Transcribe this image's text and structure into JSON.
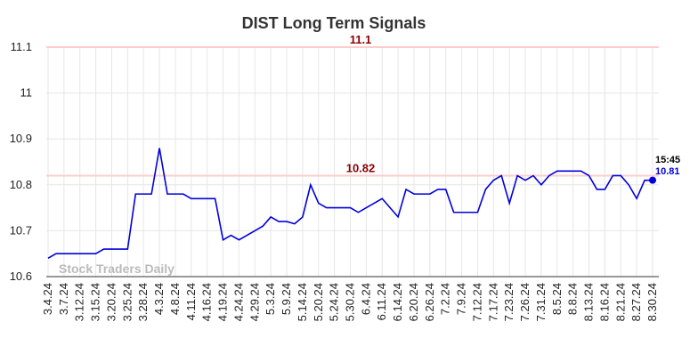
{
  "chart_data": {
    "type": "line",
    "title": "DIST Long Term Signals",
    "categories": [
      "3.4.24",
      null,
      "3.7.24",
      null,
      "3.12.24",
      null,
      "3.15.24",
      null,
      "3.20.24",
      null,
      "3.25.24",
      null,
      "3.28.24",
      null,
      "4.3.24",
      null,
      "4.8.24",
      null,
      "4.11.24",
      null,
      "4.16.24",
      null,
      "4.19.24",
      null,
      "4.24.24",
      null,
      "4.29.24",
      null,
      "5.3.24",
      null,
      "5.9.24",
      null,
      "5.14.24",
      null,
      "5.20.24",
      null,
      "5.24.24",
      null,
      "5.30.24",
      null,
      "6.4.24",
      null,
      "6.11.24",
      null,
      "6.14.24",
      null,
      "6.20.24",
      null,
      "6.26.24",
      null,
      "7.2.24",
      null,
      "7.9.24",
      null,
      "7.12.24",
      null,
      "7.17.24",
      null,
      "7.23.24",
      null,
      "7.26.24",
      null,
      "7.31.24",
      null,
      "8.5.24",
      null,
      "8.8.24",
      null,
      "8.13.24",
      null,
      "8.16.24",
      null,
      "8.21.24",
      null,
      "8.27.24",
      null,
      "8.30.24"
    ],
    "values": [
      10.64,
      10.65,
      10.65,
      10.65,
      10.65,
      10.65,
      10.65,
      10.66,
      10.66,
      10.66,
      10.66,
      10.78,
      10.78,
      10.78,
      10.88,
      10.78,
      10.78,
      10.78,
      10.77,
      10.77,
      10.77,
      10.77,
      10.68,
      10.69,
      10.68,
      10.69,
      10.7,
      10.71,
      10.73,
      10.72,
      10.72,
      10.715,
      10.73,
      10.8,
      10.76,
      10.75,
      10.75,
      10.75,
      10.75,
      10.74,
      10.75,
      10.76,
      10.77,
      10.75,
      10.73,
      10.79,
      10.78,
      10.78,
      10.78,
      10.79,
      10.79,
      10.74,
      10.74,
      10.74,
      10.74,
      10.79,
      10.81,
      10.82,
      10.76,
      10.82,
      10.81,
      10.82,
      10.8,
      10.82,
      10.83,
      10.83,
      10.83,
      10.83,
      10.82,
      10.79,
      10.79,
      10.82,
      10.82,
      10.8,
      10.77,
      10.81,
      10.81
    ],
    "color": "#0000dd",
    "ylim": [
      10.6,
      11.1
    ],
    "yticks": [
      10.6,
      10.7,
      10.8,
      10.9,
      11,
      11.1
    ],
    "grid": true,
    "hlines": [
      11.1,
      10.82
    ],
    "hline_color": "#ffcccc",
    "hline_label_color": "#8b0000",
    "end_annotation": {
      "time": "15:45",
      "label": "10.81"
    },
    "watermark": "Stock Traders Daily"
  }
}
